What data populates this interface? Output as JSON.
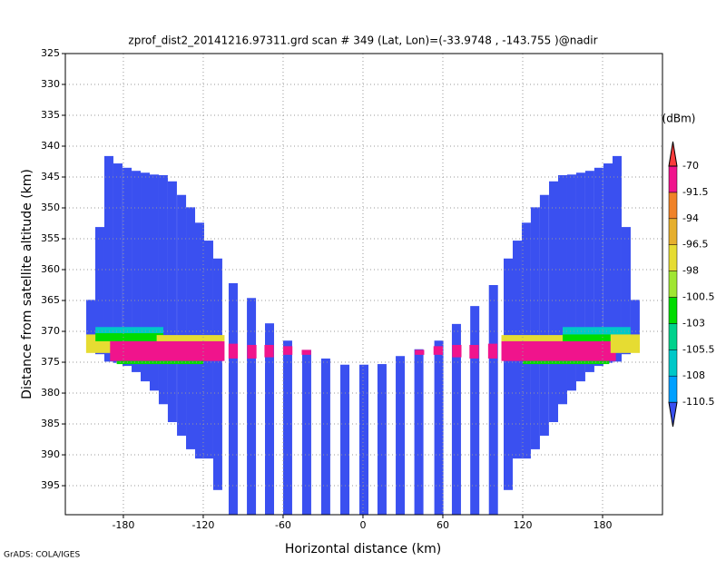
{
  "chart_data": {
    "type": "heatmap",
    "title": "zprof_dist2_20141216.97311.grd  scan # 349  (Lat, Lon)=(-33.9748 , -143.755 )@nadir",
    "x_label": "Horizontal distance (km)",
    "y_label": "Distance from satellite altitude (km)",
    "colorbar_label": "(dBm)",
    "credit": "GrADS: COLA/IGES",
    "xlim": [
      -223.6,
      225
    ],
    "ylim": [
      399.7,
      325
    ],
    "xticks": [
      -180,
      -120,
      -60,
      0,
      60,
      120,
      180
    ],
    "yticks": [
      325,
      330,
      335,
      340,
      345,
      350,
      355,
      360,
      365,
      370,
      375,
      380,
      385,
      390,
      395
    ],
    "grid": true,
    "levels": [
      -110.5,
      -108,
      -105.5,
      -103,
      -100.5,
      -98,
      -96.5,
      -94,
      -91.5,
      -70
    ],
    "colors": [
      "#3a50f0",
      "#00a0ff",
      "#00c8c8",
      "#00d28c",
      "#00dc00",
      "#a0e632",
      "#e6dc32",
      "#e6af2d",
      "#f08228",
      "#f0148c",
      "#fa3c3c"
    ],
    "columns": {
      "x": [
        -204.5,
        -197.7,
        -190.9,
        -184.1,
        -177.2,
        -170.4,
        -163.6,
        -156.8,
        -150,
        -143.2,
        -136.3,
        -129.5,
        -122.7,
        -115.9,
        -109.1,
        -97.5,
        -83.8,
        -70.2,
        -56.6,
        -42.3,
        -28,
        -13.6,
        0.7,
        14.3,
        28,
        42,
        57,
        70.2,
        84,
        98,
        109.1,
        115.9,
        122.7,
        129.5,
        136.3,
        143.2,
        150,
        156.8,
        163.6,
        170.4,
        177.2,
        184.1,
        190.9,
        197.7,
        204.5
      ],
      "top": [
        364.9,
        353.1,
        341.6,
        342.8,
        343.5,
        344.0,
        344.3,
        344.6,
        344.7,
        345.7,
        347.9,
        349.9,
        352.4,
        355.3,
        358.2,
        362.2,
        364.6,
        368.7,
        371.5,
        373.0,
        374.4,
        375.4,
        375.4,
        375.3,
        374.0,
        372.9,
        371.5,
        368.8,
        365.9,
        362.5,
        358.2,
        355.3,
        352.4,
        349.9,
        347.9,
        345.7,
        344.7,
        344.6,
        344.3,
        344.0,
        343.5,
        342.8,
        341.6,
        353.1,
        364.9
      ],
      "bottom": [
        372.2,
        373.7,
        374.9,
        375.1,
        375.6,
        376.6,
        378.1,
        379.6,
        381.8,
        384.7,
        386.9,
        389.1,
        390.6,
        390.6,
        395.7,
        399.7,
        399.7,
        399.7,
        399.7,
        399.7,
        399.7,
        399.7,
        399.7,
        399.7,
        399.7,
        399.7,
        399.7,
        399.7,
        399.7,
        399.7,
        395.7,
        390.6,
        390.6,
        389.1,
        386.9,
        384.7,
        381.8,
        379.6,
        378.1,
        376.6,
        375.6,
        375.1,
        374.9,
        373.7,
        372.2
      ]
    },
    "cells": [
      [
        -208,
        -186,
        370.5,
        373.5,
        -97
      ],
      [
        -201,
        -150,
        369.3,
        370.5,
        -107
      ],
      [
        -201,
        -150,
        370.3,
        371.6,
        -102
      ],
      [
        -190,
        -104,
        371.6,
        374.8,
        -85
      ],
      [
        -155,
        -104,
        370.6,
        371.6,
        -97
      ],
      [
        -185,
        -120,
        374.8,
        375.3,
        -102
      ],
      [
        -101,
        -94,
        372,
        374.4,
        -85
      ],
      [
        -87,
        -80,
        372.2,
        374.4,
        -85
      ],
      [
        -74,
        -67,
        372.2,
        374.2,
        -85
      ],
      [
        -60,
        -53,
        372.4,
        373.8,
        -85
      ],
      [
        -46,
        -39,
        373,
        373.8,
        -75
      ],
      [
        39,
        46,
        373,
        373.8,
        -75
      ],
      [
        53,
        60,
        372.4,
        373.8,
        -85
      ],
      [
        67,
        74,
        372.2,
        374.2,
        -85
      ],
      [
        80,
        87,
        372.2,
        374.4,
        -85
      ],
      [
        94,
        101,
        372,
        374.4,
        -85
      ],
      [
        104,
        190,
        371.6,
        374.8,
        -85
      ],
      [
        104,
        155,
        370.6,
        371.6,
        -97
      ],
      [
        150,
        201,
        370.3,
        371.6,
        -102
      ],
      [
        150,
        201,
        369.3,
        370.5,
        -107
      ],
      [
        186,
        208,
        370.5,
        373.5,
        -97
      ],
      [
        120,
        185,
        374.8,
        375.3,
        -102
      ]
    ]
  }
}
